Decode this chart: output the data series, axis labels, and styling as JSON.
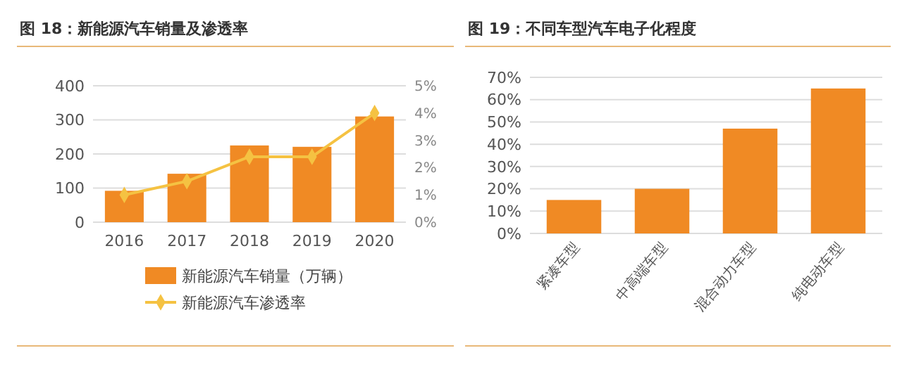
{
  "chart_data": [
    {
      "type": "bar",
      "title": "图 18：新能源汽车销量及渗透率",
      "categories": [
        "2016",
        "2017",
        "2018",
        "2019",
        "2020"
      ],
      "series": [
        {
          "name": "新能源汽车销量（万辆）",
          "color": "#f08a24",
          "values": [
            92,
            142,
            225,
            221,
            310
          ]
        },
        {
          "name": "新能源汽车渗透率",
          "type": "line",
          "axis": "y2",
          "color": "#f5c242",
          "marker": "diamond",
          "values": [
            1.0,
            1.5,
            2.4,
            2.4,
            4.0
          ]
        }
      ],
      "ylim": [
        0,
        400
      ],
      "yticks": [
        0,
        100,
        200,
        300,
        400
      ],
      "y2lim": [
        0,
        5
      ],
      "y2ticks": [
        {
          "value": 0,
          "label": "0%"
        },
        {
          "value": 1,
          "label": "1%"
        },
        {
          "value": 2,
          "label": "2%"
        },
        {
          "value": 3,
          "label": "3%"
        },
        {
          "value": 4,
          "label": "4%"
        },
        {
          "value": 5,
          "label": "5%"
        }
      ],
      "grid": "y",
      "legend": "bottom"
    },
    {
      "type": "bar",
      "title": "图 19：不同车型汽车电子化程度",
      "categories": [
        "紧凑车型",
        "中高端车型",
        "混合动力车型",
        "纯电动车型"
      ],
      "series": [
        {
          "color": "#f08a24",
          "values": [
            15,
            20,
            47,
            65
          ]
        }
      ],
      "ylim": [
        0,
        70
      ],
      "yticks": [
        {
          "value": 0,
          "label": "0%"
        },
        {
          "value": 10,
          "label": "10%"
        },
        {
          "value": 20,
          "label": "20%"
        },
        {
          "value": 30,
          "label": "30%"
        },
        {
          "value": 40,
          "label": "40%"
        },
        {
          "value": 50,
          "label": "50%"
        },
        {
          "value": 60,
          "label": "60%"
        },
        {
          "value": 70,
          "label": "70%"
        }
      ],
      "grid": "y",
      "legend": false
    }
  ]
}
